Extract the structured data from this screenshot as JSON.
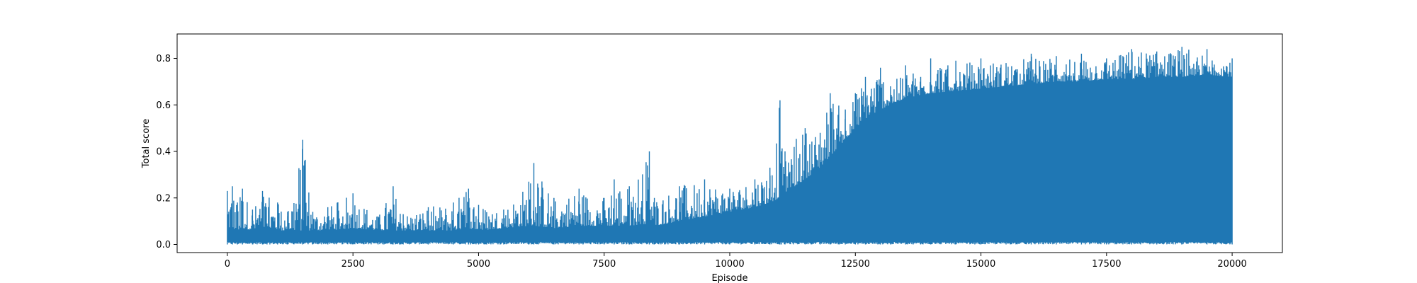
{
  "chart_data": {
    "type": "line",
    "title": "",
    "xlabel": "Episode",
    "ylabel": "Total score",
    "xlim": [
      -1000,
      21000
    ],
    "ylim": [
      -0.035,
      0.905
    ],
    "xticks": [
      0,
      2500,
      5000,
      7500,
      10000,
      12500,
      15000,
      17500,
      20000
    ],
    "xtick_labels": [
      "0",
      "2500",
      "5000",
      "7500",
      "10000",
      "12500",
      "15000",
      "17500",
      "20000"
    ],
    "yticks": [
      0.0,
      0.2,
      0.4,
      0.6,
      0.8
    ],
    "ytick_labels": [
      "0.0",
      "0.2",
      "0.4",
      "0.6",
      "0.8"
    ],
    "grid": false,
    "legend": "none",
    "series": [
      {
        "color": "#1f77b4",
        "x_range": [
          0,
          20000
        ],
        "summary": "Per-episode score: near 0 with spikes up to ~0.25 for episodes 0-11000 (outlier 0.45 near 1500); rises sharply after 11000 and saturates at peaks of ~0.75-0.86 by episode 14000-20000.",
        "envelope_x": [
          0,
          100,
          200,
          300,
          500,
          700,
          1000,
          1200,
          1500,
          1700,
          2000,
          2500,
          3000,
          3300,
          3500,
          4000,
          4500,
          4800,
          5000,
          5500,
          6000,
          6100,
          6500,
          7000,
          7500,
          7700,
          8000,
          8400,
          8500,
          9000,
          9500,
          10000,
          10500,
          10800,
          11000,
          11100,
          11500,
          11800,
          12000,
          12300,
          12500,
          12700,
          13000,
          13200,
          13500,
          13800,
          14000,
          14500,
          15000,
          15500,
          16000,
          16500,
          17000,
          17500,
          18000,
          18500,
          19000,
          19500,
          20000
        ],
        "envelope_max": [
          0.23,
          0.25,
          0.18,
          0.24,
          0.15,
          0.23,
          0.18,
          0.14,
          0.45,
          0.14,
          0.16,
          0.22,
          0.12,
          0.25,
          0.13,
          0.16,
          0.18,
          0.24,
          0.17,
          0.15,
          0.27,
          0.35,
          0.2,
          0.24,
          0.2,
          0.28,
          0.25,
          0.4,
          0.2,
          0.25,
          0.28,
          0.24,
          0.28,
          0.33,
          0.62,
          0.4,
          0.5,
          0.48,
          0.65,
          0.58,
          0.65,
          0.72,
          0.76,
          0.68,
          0.77,
          0.72,
          0.8,
          0.79,
          0.8,
          0.78,
          0.82,
          0.81,
          0.82,
          0.8,
          0.84,
          0.83,
          0.85,
          0.84,
          0.8
        ],
        "envelope_base": [
          0.07,
          0.07,
          0.06,
          0.07,
          0.06,
          0.07,
          0.06,
          0.06,
          0.06,
          0.06,
          0.06,
          0.07,
          0.06,
          0.06,
          0.06,
          0.06,
          0.06,
          0.07,
          0.06,
          0.07,
          0.08,
          0.08,
          0.07,
          0.08,
          0.08,
          0.08,
          0.08,
          0.09,
          0.08,
          0.1,
          0.12,
          0.14,
          0.16,
          0.18,
          0.2,
          0.22,
          0.28,
          0.33,
          0.38,
          0.45,
          0.5,
          0.54,
          0.58,
          0.6,
          0.63,
          0.64,
          0.65,
          0.66,
          0.67,
          0.68,
          0.69,
          0.7,
          0.7,
          0.71,
          0.71,
          0.72,
          0.72,
          0.73,
          0.72
        ],
        "min": 0.0
      }
    ]
  }
}
